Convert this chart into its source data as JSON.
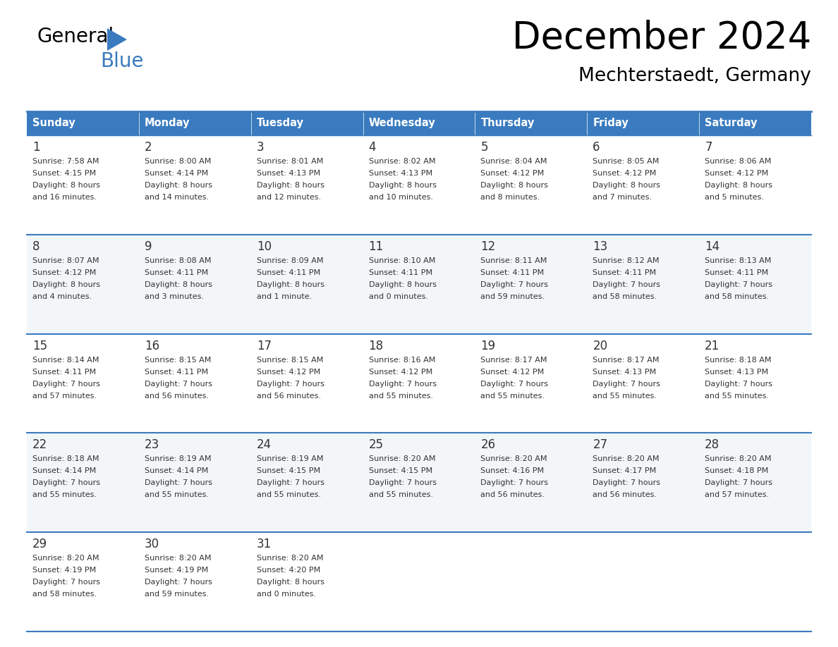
{
  "title": "December 2024",
  "subtitle": "Mechterstaedt, Germany",
  "header_color": "#3a7bbf",
  "header_text_color": "#ffffff",
  "border_color": "#3a7bbf",
  "text_color": "#333333",
  "days_of_week": [
    "Sunday",
    "Monday",
    "Tuesday",
    "Wednesday",
    "Thursday",
    "Friday",
    "Saturday"
  ],
  "calendar_data": [
    [
      {
        "day": "1",
        "sunrise": "7:58 AM",
        "sunset": "4:15 PM",
        "daylight_h": "8 hours",
        "daylight_m": "and 16 minutes."
      },
      {
        "day": "2",
        "sunrise": "8:00 AM",
        "sunset": "4:14 PM",
        "daylight_h": "8 hours",
        "daylight_m": "and 14 minutes."
      },
      {
        "day": "3",
        "sunrise": "8:01 AM",
        "sunset": "4:13 PM",
        "daylight_h": "8 hours",
        "daylight_m": "and 12 minutes."
      },
      {
        "day": "4",
        "sunrise": "8:02 AM",
        "sunset": "4:13 PM",
        "daylight_h": "8 hours",
        "daylight_m": "and 10 minutes."
      },
      {
        "day": "5",
        "sunrise": "8:04 AM",
        "sunset": "4:12 PM",
        "daylight_h": "8 hours",
        "daylight_m": "and 8 minutes."
      },
      {
        "day": "6",
        "sunrise": "8:05 AM",
        "sunset": "4:12 PM",
        "daylight_h": "8 hours",
        "daylight_m": "and 7 minutes."
      },
      {
        "day": "7",
        "sunrise": "8:06 AM",
        "sunset": "4:12 PM",
        "daylight_h": "8 hours",
        "daylight_m": "and 5 minutes."
      }
    ],
    [
      {
        "day": "8",
        "sunrise": "8:07 AM",
        "sunset": "4:12 PM",
        "daylight_h": "8 hours",
        "daylight_m": "and 4 minutes."
      },
      {
        "day": "9",
        "sunrise": "8:08 AM",
        "sunset": "4:11 PM",
        "daylight_h": "8 hours",
        "daylight_m": "and 3 minutes."
      },
      {
        "day": "10",
        "sunrise": "8:09 AM",
        "sunset": "4:11 PM",
        "daylight_h": "8 hours",
        "daylight_m": "and 1 minute."
      },
      {
        "day": "11",
        "sunrise": "8:10 AM",
        "sunset": "4:11 PM",
        "daylight_h": "8 hours",
        "daylight_m": "and 0 minutes."
      },
      {
        "day": "12",
        "sunrise": "8:11 AM",
        "sunset": "4:11 PM",
        "daylight_h": "7 hours",
        "daylight_m": "and 59 minutes."
      },
      {
        "day": "13",
        "sunrise": "8:12 AM",
        "sunset": "4:11 PM",
        "daylight_h": "7 hours",
        "daylight_m": "and 58 minutes."
      },
      {
        "day": "14",
        "sunrise": "8:13 AM",
        "sunset": "4:11 PM",
        "daylight_h": "7 hours",
        "daylight_m": "and 58 minutes."
      }
    ],
    [
      {
        "day": "15",
        "sunrise": "8:14 AM",
        "sunset": "4:11 PM",
        "daylight_h": "7 hours",
        "daylight_m": "and 57 minutes."
      },
      {
        "day": "16",
        "sunrise": "8:15 AM",
        "sunset": "4:11 PM",
        "daylight_h": "7 hours",
        "daylight_m": "and 56 minutes."
      },
      {
        "day": "17",
        "sunrise": "8:15 AM",
        "sunset": "4:12 PM",
        "daylight_h": "7 hours",
        "daylight_m": "and 56 minutes."
      },
      {
        "day": "18",
        "sunrise": "8:16 AM",
        "sunset": "4:12 PM",
        "daylight_h": "7 hours",
        "daylight_m": "and 55 minutes."
      },
      {
        "day": "19",
        "sunrise": "8:17 AM",
        "sunset": "4:12 PM",
        "daylight_h": "7 hours",
        "daylight_m": "and 55 minutes."
      },
      {
        "day": "20",
        "sunrise": "8:17 AM",
        "sunset": "4:13 PM",
        "daylight_h": "7 hours",
        "daylight_m": "and 55 minutes."
      },
      {
        "day": "21",
        "sunrise": "8:18 AM",
        "sunset": "4:13 PM",
        "daylight_h": "7 hours",
        "daylight_m": "and 55 minutes."
      }
    ],
    [
      {
        "day": "22",
        "sunrise": "8:18 AM",
        "sunset": "4:14 PM",
        "daylight_h": "7 hours",
        "daylight_m": "and 55 minutes."
      },
      {
        "day": "23",
        "sunrise": "8:19 AM",
        "sunset": "4:14 PM",
        "daylight_h": "7 hours",
        "daylight_m": "and 55 minutes."
      },
      {
        "day": "24",
        "sunrise": "8:19 AM",
        "sunset": "4:15 PM",
        "daylight_h": "7 hours",
        "daylight_m": "and 55 minutes."
      },
      {
        "day": "25",
        "sunrise": "8:20 AM",
        "sunset": "4:15 PM",
        "daylight_h": "7 hours",
        "daylight_m": "and 55 minutes."
      },
      {
        "day": "26",
        "sunrise": "8:20 AM",
        "sunset": "4:16 PM",
        "daylight_h": "7 hours",
        "daylight_m": "and 56 minutes."
      },
      {
        "day": "27",
        "sunrise": "8:20 AM",
        "sunset": "4:17 PM",
        "daylight_h": "7 hours",
        "daylight_m": "and 56 minutes."
      },
      {
        "day": "28",
        "sunrise": "8:20 AM",
        "sunset": "4:18 PM",
        "daylight_h": "7 hours",
        "daylight_m": "and 57 minutes."
      }
    ],
    [
      {
        "day": "29",
        "sunrise": "8:20 AM",
        "sunset": "4:19 PM",
        "daylight_h": "7 hours",
        "daylight_m": "and 58 minutes."
      },
      {
        "day": "30",
        "sunrise": "8:20 AM",
        "sunset": "4:19 PM",
        "daylight_h": "7 hours",
        "daylight_m": "and 59 minutes."
      },
      {
        "day": "31",
        "sunrise": "8:20 AM",
        "sunset": "4:20 PM",
        "daylight_h": "8 hours",
        "daylight_m": "and 0 minutes."
      },
      null,
      null,
      null,
      null
    ]
  ],
  "fig_width": 11.88,
  "fig_height": 9.18,
  "dpi": 100
}
